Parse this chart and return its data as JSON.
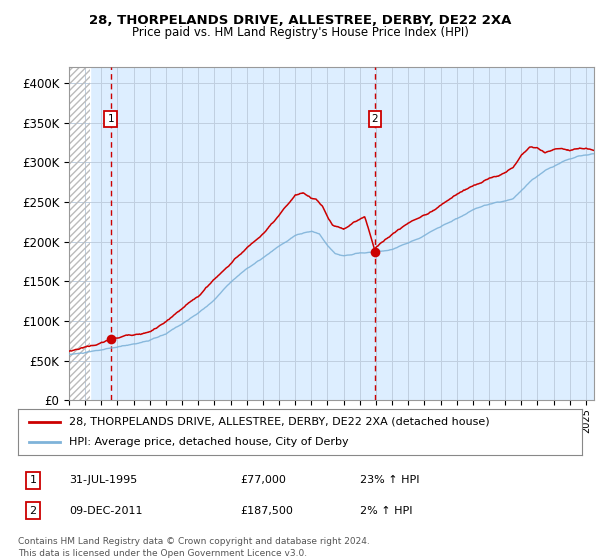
{
  "title1": "28, THORPELANDS DRIVE, ALLESTREE, DERBY, DE22 2XA",
  "title2": "Price paid vs. HM Land Registry's House Price Index (HPI)",
  "red_label": "28, THORPELANDS DRIVE, ALLESTREE, DERBY, DE22 2XA (detached house)",
  "blue_label": "HPI: Average price, detached house, City of Derby",
  "annotation1_date": "31-JUL-1995",
  "annotation1_price": "£77,000",
  "annotation1_hpi": "23% ↑ HPI",
  "annotation2_date": "09-DEC-2011",
  "annotation2_price": "£187,500",
  "annotation2_hpi": "2% ↑ HPI",
  "footer": "Contains HM Land Registry data © Crown copyright and database right 2024.\nThis data is licensed under the Open Government Licence v3.0.",
  "red_color": "#cc0000",
  "blue_color": "#7fb3d9",
  "bg_color": "#ddeeff",
  "hatch_color": "#bbbbbb",
  "grid_color": "#c0cfe0",
  "ylim": [
    0,
    420000
  ],
  "xlim_left": 1993.0,
  "xlim_right": 2025.5,
  "hatch_end": 1994.3,
  "sale1_x": 1995.58,
  "sale1_y": 77000,
  "sale2_x": 2011.94,
  "sale2_y": 187500
}
